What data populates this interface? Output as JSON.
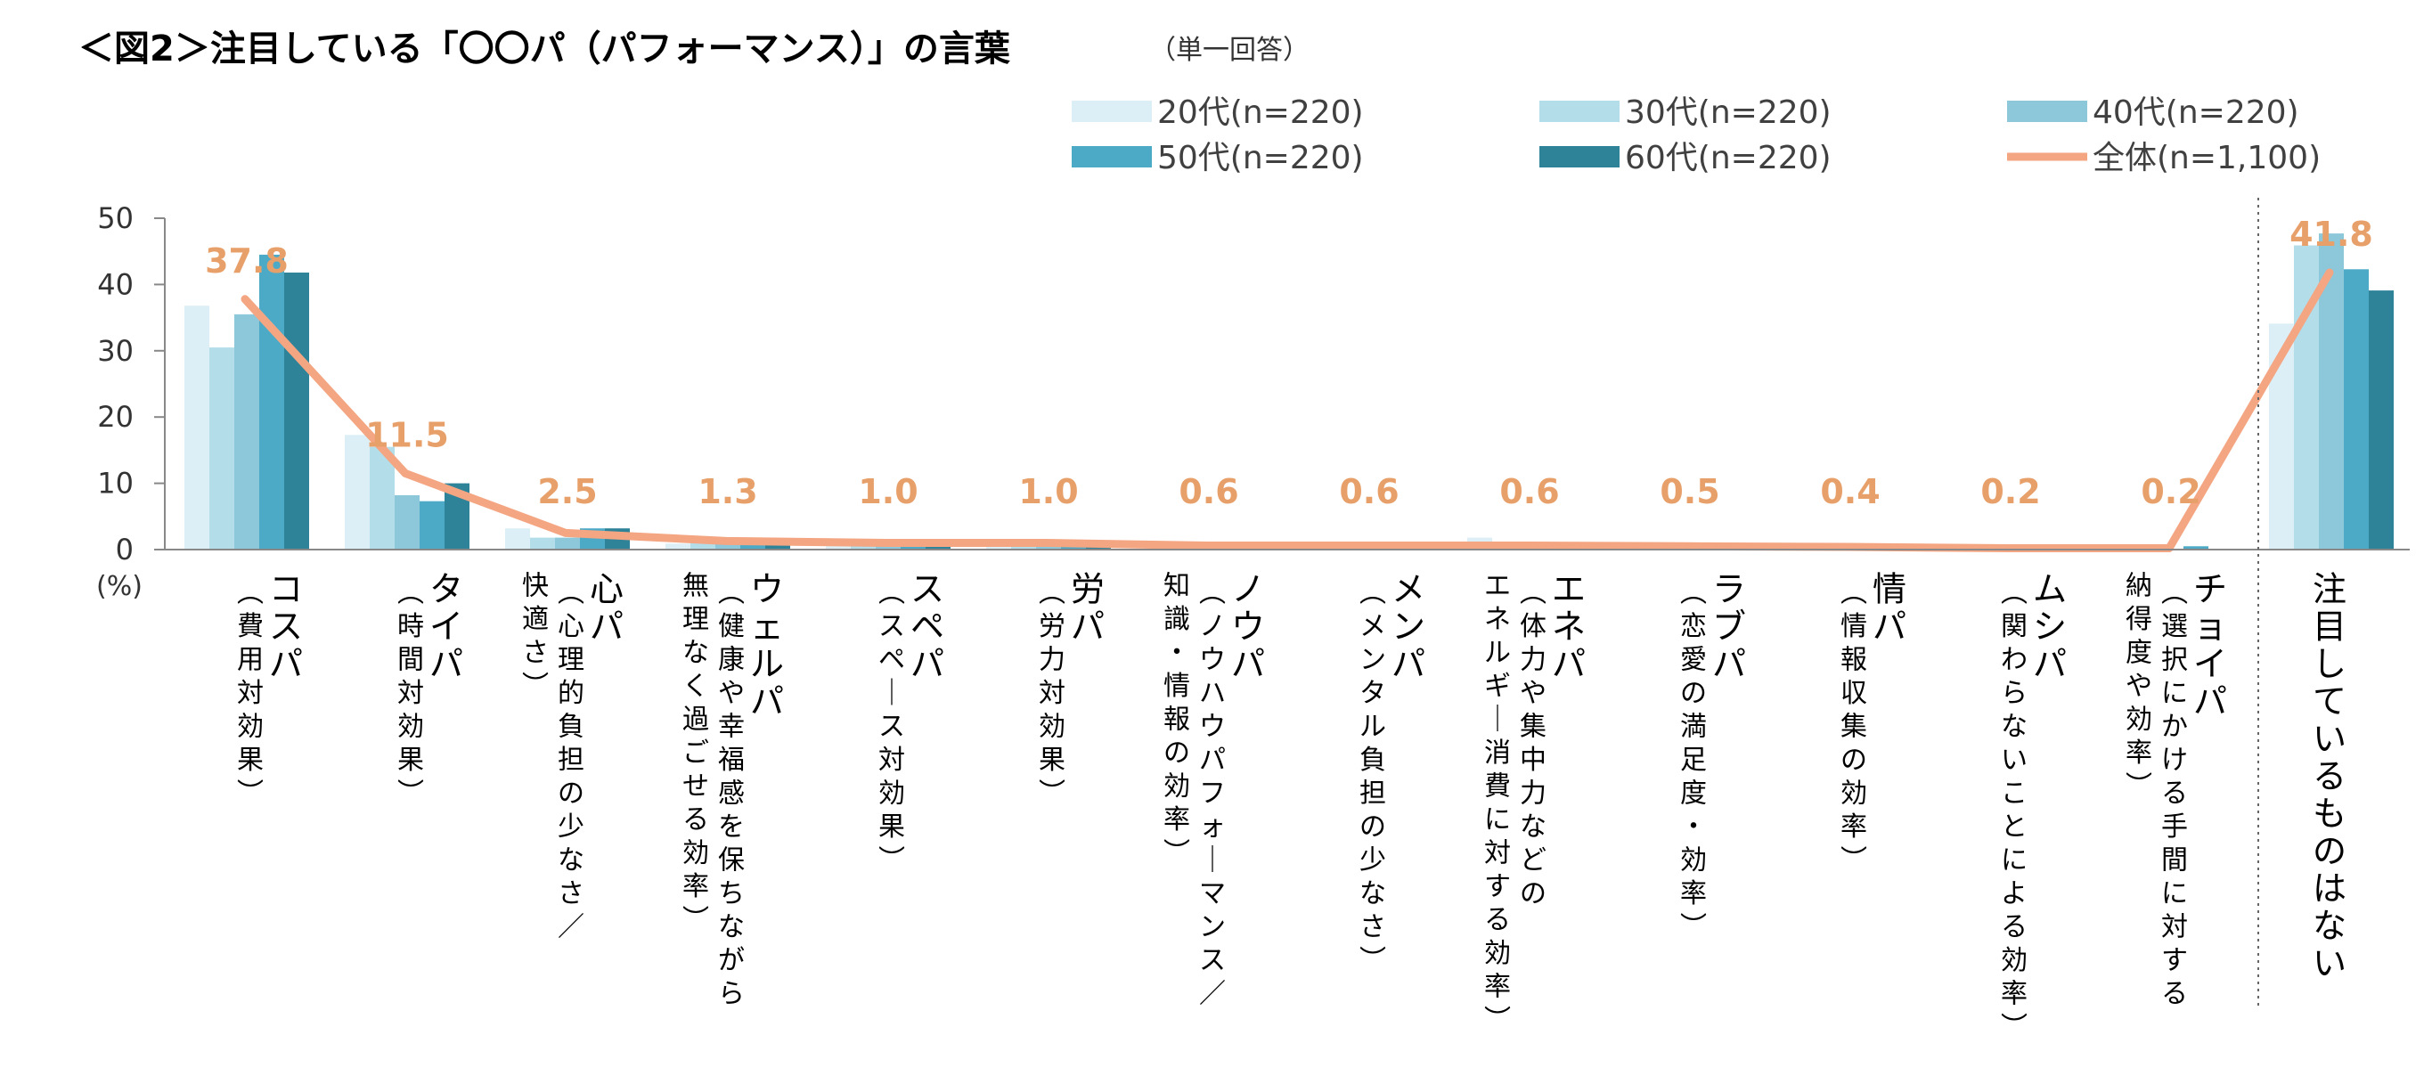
{
  "chart_data": {
    "type": "bar",
    "title": "＜図2＞注目している「〇〇パ（パフォーマンス）」の言葉",
    "subtitle": "（単一回答）",
    "ylabel": "(%)",
    "ylim": [
      0,
      50
    ],
    "yticks": [
      0,
      10,
      20,
      30,
      40,
      50
    ],
    "grid": false,
    "legend_position": "top",
    "categories": [
      [
        "コスパ",
        "（費用対効果）"
      ],
      [
        "タイパ",
        "（時間対効果）"
      ],
      [
        "心パ",
        "（心理的負担の少なさ／",
        "快適さ）"
      ],
      [
        "ウェルパ",
        "（健康や幸福感を保ちながら",
        "無理なく過ごせる効率）"
      ],
      [
        "スペパ",
        "（スペース対効果）"
      ],
      [
        "労パ",
        "（労力対効果）"
      ],
      [
        "ノウパ",
        "（ノウハウパフォーマンス／",
        "知識・情報の効率）"
      ],
      [
        "メンパ",
        "（メンタル負担の少なさ）"
      ],
      [
        "エネパ",
        "（体力や集中力などの",
        "エネルギー消費に対する効率）"
      ],
      [
        "ラブパ",
        "（恋愛の満足度・効率）"
      ],
      [
        "情パ",
        "（情報収集の効率）"
      ],
      [
        "ムシパ",
        "（関わらないことによる効率）"
      ],
      [
        "チョイパ",
        "（選択にかける手間に対する",
        "納得度や効率）"
      ],
      [
        "注目しているものはない"
      ]
    ],
    "series": [
      {
        "name": "20代(n=220)",
        "color": "#DDEFF6",
        "values": [
          36.8,
          17.3,
          3.2,
          0.9,
          0.5,
          0.5,
          0.5,
          0.5,
          1.8,
          0.5,
          0.5,
          0.0,
          0.0,
          34.1
        ]
      },
      {
        "name": "30代(n=220)",
        "color": "#B4DDEA",
        "values": [
          30.5,
          15.5,
          1.8,
          1.4,
          0.9,
          1.4,
          0.5,
          0.5,
          0.5,
          0.5,
          0.5,
          0.0,
          0.0,
          45.9
        ]
      },
      {
        "name": "40代(n=220)",
        "color": "#8CC7DA",
        "values": [
          35.5,
          8.2,
          1.8,
          1.4,
          0.9,
          1.4,
          0.5,
          0.5,
          0.5,
          0.5,
          0.5,
          0.0,
          0.0,
          47.7
        ]
      },
      {
        "name": "50代(n=220)",
        "color": "#4DAAC7",
        "values": [
          44.5,
          7.3,
          3.2,
          1.4,
          0.9,
          0.9,
          0.9,
          0.9,
          0.0,
          0.5,
          0.5,
          0.5,
          0.5,
          42.3
        ]
      },
      {
        "name": "60代(n=220)",
        "color": "#2F8399",
        "values": [
          41.8,
          10.0,
          3.2,
          1.4,
          0.9,
          0.9,
          0.9,
          0.5,
          0.5,
          0.5,
          0.5,
          0.5,
          0.0,
          39.1
        ]
      }
    ],
    "line": {
      "name": "全体(n=1,100)",
      "color": "#F4A582",
      "label_color": "#E8A06A",
      "values": [
        37.8,
        11.5,
        2.5,
        1.3,
        1.0,
        1.0,
        0.6,
        0.6,
        0.6,
        0.5,
        0.4,
        0.2,
        0.2,
        41.8
      ],
      "labels": [
        "37.8",
        "11.5",
        "2.5",
        "1.3",
        "1.0",
        "1.0",
        "0.6",
        "0.6",
        "0.6",
        "0.5",
        "0.4",
        "0.2",
        "0.2",
        "41.8"
      ]
    },
    "separator_before_last": true
  }
}
